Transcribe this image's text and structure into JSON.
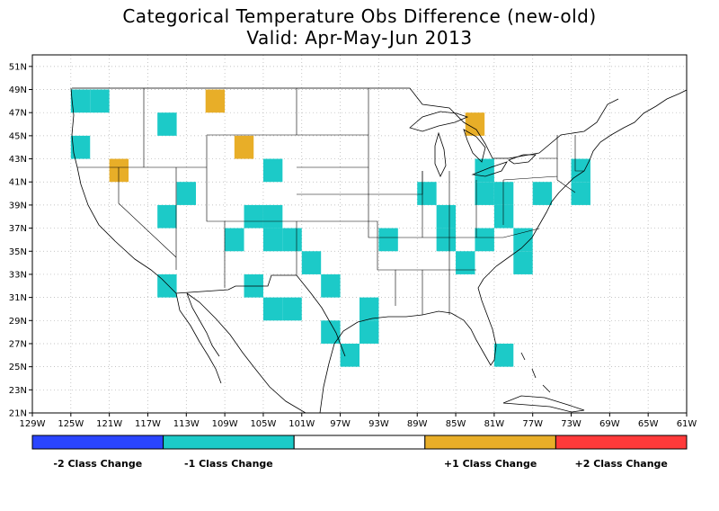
{
  "title_line1": "Categorical Temperature Obs Difference (new-old)",
  "title_line2": "Valid: Apr-May-Jun 2013",
  "map": {
    "lon_range": [
      -129,
      -61
    ],
    "lat_range": [
      21,
      52
    ],
    "x_ticks": [
      "129W",
      "125W",
      "121W",
      "117W",
      "113W",
      "109W",
      "105W",
      "101W",
      "97W",
      "93W",
      "89W",
      "85W",
      "81W",
      "77W",
      "73W",
      "69W",
      "65W",
      "61W"
    ],
    "y_ticks": [
      "21N",
      "23N",
      "25N",
      "27N",
      "29N",
      "31N",
      "33N",
      "35N",
      "37N",
      "39N",
      "41N",
      "43N",
      "45N",
      "47N",
      "49N",
      "51N"
    ],
    "colors": {
      "minus2": "#2a45ff",
      "minus1": "#1ccac8",
      "none": "#ffffff",
      "plus1": "#e8ae28",
      "plus2": "#ff3a3a"
    },
    "cells_minus1": [
      [
        -124,
        48
      ],
      [
        -122,
        48
      ],
      [
        -124,
        44
      ],
      [
        -115,
        46
      ],
      [
        -113,
        40
      ],
      [
        -115,
        38
      ],
      [
        -104,
        42
      ],
      [
        -106,
        38
      ],
      [
        -104,
        38
      ],
      [
        -108,
        36
      ],
      [
        -104,
        36
      ],
      [
        -102,
        36
      ],
      [
        -100,
        34
      ],
      [
        -98,
        32
      ],
      [
        -106,
        32
      ],
      [
        -104,
        30
      ],
      [
        -102,
        30
      ],
      [
        -98,
        28
      ],
      [
        -94,
        30
      ],
      [
        -94,
        28
      ],
      [
        -96,
        26
      ],
      [
        -115,
        32
      ],
      [
        -92,
        36
      ],
      [
        -88,
        40
      ],
      [
        -86,
        38
      ],
      [
        -86,
        36
      ],
      [
        -84,
        34
      ],
      [
        -82,
        42
      ],
      [
        -82,
        40
      ],
      [
        -80,
        40
      ],
      [
        -80,
        38
      ],
      [
        -82,
        36
      ],
      [
        -78,
        36
      ],
      [
        -78,
        34
      ],
      [
        -76,
        40
      ],
      [
        -72,
        42
      ],
      [
        -72,
        40
      ],
      [
        -80,
        26
      ]
    ],
    "cells_plus1": [
      [
        -110,
        48
      ],
      [
        -120,
        42
      ],
      [
        -107,
        44
      ],
      [
        -83,
        46
      ]
    ]
  },
  "legend": {
    "segments": [
      {
        "color": "#2a45ff",
        "label": "-2 Class Change"
      },
      {
        "color": "#1ccac8",
        "label": "-1 Class Change"
      },
      {
        "color": "#ffffff",
        "label": ""
      },
      {
        "color": "#e8ae28",
        "label": "+1 Class Change"
      },
      {
        "color": "#ff3a3a",
        "label": "+2 Class Change"
      }
    ]
  }
}
